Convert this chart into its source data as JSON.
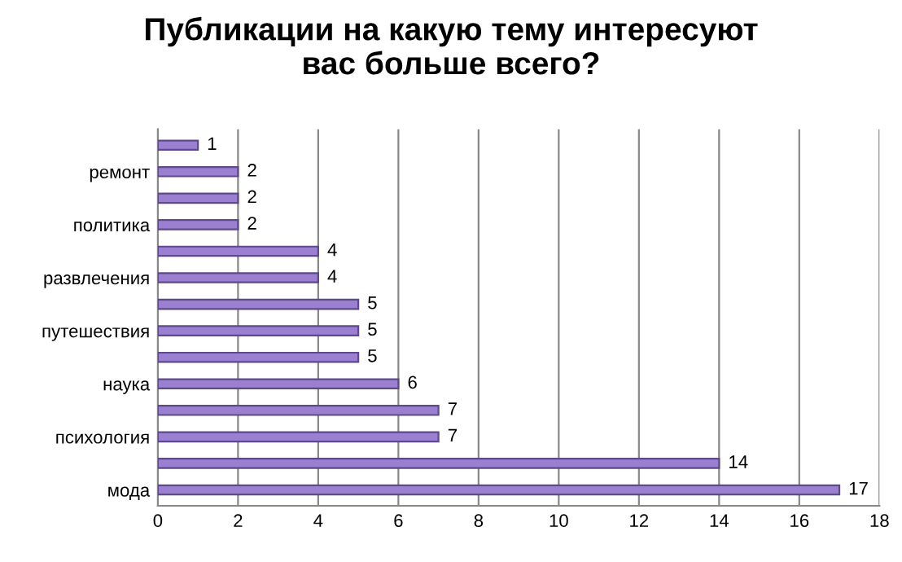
{
  "chart_data": {
    "type": "bar",
    "orientation": "horizontal",
    "title": "Публикации на какую тему интересуют\nвас больше всего?",
    "categories": [
      null,
      "ремонт",
      null,
      "политика",
      null,
      "развлечения",
      null,
      "путешествия",
      null,
      "наука",
      null,
      "психология",
      null,
      "мода"
    ],
    "values": [
      1,
      2,
      2,
      2,
      4,
      4,
      5,
      5,
      5,
      6,
      7,
      7,
      14,
      17
    ],
    "color": "#9b7fd0",
    "xlim": [
      0,
      18
    ],
    "xticks": [
      0,
      2,
      4,
      6,
      8,
      10,
      12,
      14,
      16,
      18
    ],
    "grid": "x",
    "data_labels": true
  }
}
